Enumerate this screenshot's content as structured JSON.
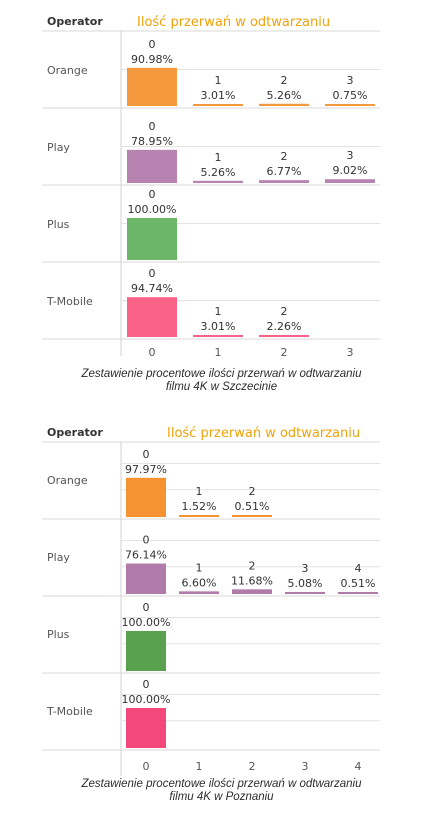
{
  "chart_data": [
    {
      "type": "bar",
      "header": "Operator",
      "title": "Ilość przerwań w odtwarzaniu",
      "caption_line1": "Zestawienie procentowe ilości przerwań w odtwarzaniu",
      "caption_line2": "filmu 4K w Szczecinie",
      "x_ticks": [
        "0",
        "1",
        "2",
        "3"
      ],
      "ylim": [
        0,
        100
      ],
      "operators": [
        {
          "name": "Orange",
          "color": "#f5993f",
          "bars": [
            {
              "x": "0",
              "value": 90.98,
              "label": "90.98%"
            },
            {
              "x": "1",
              "value": 3.01,
              "label": "3.01%"
            },
            {
              "x": "2",
              "value": 5.26,
              "label": "5.26%"
            },
            {
              "x": "3",
              "value": 0.75,
              "label": "0.75%"
            }
          ]
        },
        {
          "name": "Play",
          "color": "#b784b2",
          "bars": [
            {
              "x": "0",
              "value": 78.95,
              "label": "78.95%"
            },
            {
              "x": "1",
              "value": 5.26,
              "label": "5.26%"
            },
            {
              "x": "2",
              "value": 6.77,
              "label": "6.77%"
            },
            {
              "x": "3",
              "value": 9.02,
              "label": "9.02%"
            }
          ]
        },
        {
          "name": "Plus",
          "color": "#6cb66a",
          "bars": [
            {
              "x": "0",
              "value": 100.0,
              "label": "100.00%"
            }
          ]
        },
        {
          "name": "T-Mobile",
          "color": "#fb6287",
          "bars": [
            {
              "x": "0",
              "value": 94.74,
              "label": "94.74%"
            },
            {
              "x": "1",
              "value": 3.01,
              "label": "3.01%"
            },
            {
              "x": "2",
              "value": 2.26,
              "label": "2.26%"
            }
          ]
        }
      ]
    },
    {
      "type": "bar",
      "header": "Operator",
      "title": "Ilość przerwań w odtwarzaniu",
      "caption_line1": "Zestawienie procentowe ilości przerwań w odtwarzaniu",
      "caption_line2": "filmu 4K w Poznaniu",
      "x_ticks": [
        "0",
        "1",
        "2",
        "3",
        "4"
      ],
      "ylim": [
        0,
        100
      ],
      "operators": [
        {
          "name": "Orange",
          "color": "#f59231",
          "bars": [
            {
              "x": "0",
              "value": 97.97,
              "label": "97.97%"
            },
            {
              "x": "1",
              "value": 1.52,
              "label": "1.52%"
            },
            {
              "x": "2",
              "value": 0.51,
              "label": "0.51%"
            }
          ]
        },
        {
          "name": "Play",
          "color": "#b07aa9",
          "bars": [
            {
              "x": "0",
              "value": 76.14,
              "label": "76.14%"
            },
            {
              "x": "1",
              "value": 6.6,
              "label": "6.60%"
            },
            {
              "x": "2",
              "value": 11.68,
              "label": "11.68%"
            },
            {
              "x": "3",
              "value": 5.08,
              "label": "5.08%"
            },
            {
              "x": "4",
              "value": 0.51,
              "label": "0.51%"
            }
          ]
        },
        {
          "name": "Plus",
          "color": "#59a14f",
          "bars": [
            {
              "x": "0",
              "value": 100.0,
              "label": "100.00%"
            }
          ]
        },
        {
          "name": "T-Mobile",
          "color": "#f5487a",
          "bars": [
            {
              "x": "0",
              "value": 100.0,
              "label": "100.00%"
            }
          ]
        }
      ]
    }
  ],
  "colors": {
    "title": "#f0a20a",
    "text": "#555555",
    "grid": "#e3e3e3",
    "caption": "#2d2d2d"
  }
}
